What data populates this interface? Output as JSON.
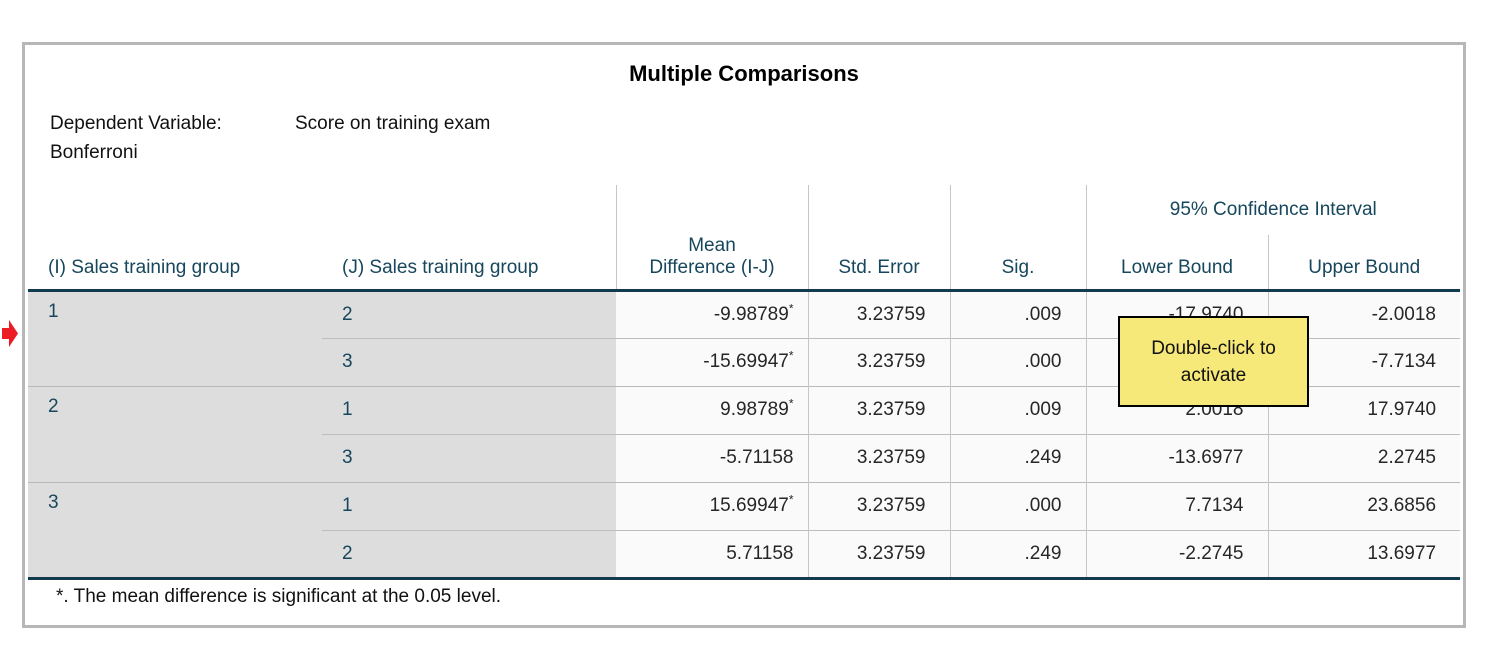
{
  "table": {
    "title": "Multiple Comparisons",
    "dependent_variable_label": "Dependent Variable:",
    "dependent_variable_value": "Score on training exam",
    "method": "Bonferroni",
    "columns": {
      "i": "(I) Sales training group",
      "j": "(J) Sales training group",
      "mean_diff": "Mean Difference (I-J)",
      "std_error": "Std. Error",
      "sig": "Sig.",
      "ci_spanner": "95% Confidence Interval",
      "lower": "Lower Bound",
      "upper": "Upper Bound"
    },
    "sig_marker": "*",
    "groups": [
      {
        "i": "1",
        "rows": [
          {
            "j": "2",
            "mean_diff": "-9.98789",
            "significant": true,
            "std_error": "3.23759",
            "sig": ".009",
            "lower": "-17.9740",
            "upper": "-2.0018"
          },
          {
            "j": "3",
            "mean_diff": "-15.69947",
            "significant": true,
            "std_error": "3.23759",
            "sig": ".000",
            "lower": "",
            "upper": "-7.7134"
          }
        ]
      },
      {
        "i": "2",
        "rows": [
          {
            "j": "1",
            "mean_diff": "9.98789",
            "significant": true,
            "std_error": "3.23759",
            "sig": ".009",
            "lower": "2.0018",
            "upper": "17.9740"
          },
          {
            "j": "3",
            "mean_diff": "-5.71158",
            "significant": false,
            "std_error": "3.23759",
            "sig": ".249",
            "lower": "-13.6977",
            "upper": "2.2745"
          }
        ]
      },
      {
        "i": "3",
        "rows": [
          {
            "j": "1",
            "mean_diff": "15.69947",
            "significant": true,
            "std_error": "3.23759",
            "sig": ".000",
            "lower": "7.7134",
            "upper": "23.6856"
          },
          {
            "j": "2",
            "mean_diff": "5.71158",
            "significant": false,
            "std_error": "3.23759",
            "sig": ".249",
            "lower": "-2.2745",
            "upper": "13.6977"
          }
        ]
      }
    ],
    "footnote": "*. The mean difference is significant at the 0.05 level."
  },
  "tooltip": {
    "line1": "Double-click to",
    "line2": "activate"
  },
  "colors": {
    "header_text": "#17475c",
    "group_cell_bg": "#dddddd",
    "data_cell_bg": "#fafafa",
    "thick_line": "#123b4f",
    "tooltip_bg": "#f6e879",
    "arrow_red": "#ec1c24",
    "box_border": "#b7b7b7"
  }
}
